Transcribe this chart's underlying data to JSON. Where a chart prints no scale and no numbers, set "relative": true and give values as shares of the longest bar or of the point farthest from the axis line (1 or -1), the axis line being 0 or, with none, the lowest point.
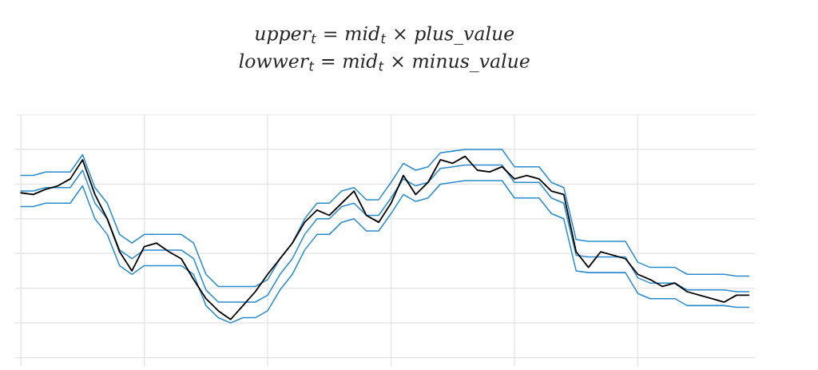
{
  "chart_data": {
    "type": "line",
    "title": "upper$_{t}$ = mid$_{t}$ × plus_value\nlowwer$_{t}$ = mid$_{t}$ × minus_value",
    "relative": true,
    "grid": true,
    "tick_labels": false,
    "categories": [
      null,
      null,
      null,
      null,
      null,
      null,
      null,
      null,
      null,
      null,
      null,
      null,
      null,
      null,
      null,
      null,
      null,
      null,
      null,
      null,
      null,
      null,
      null,
      null,
      null,
      null,
      null,
      null,
      null,
      null,
      null,
      null,
      null,
      null,
      null,
      null,
      null,
      null,
      null,
      null,
      null,
      null,
      null,
      null,
      null,
      null,
      null,
      null,
      null,
      null,
      null,
      null,
      null,
      null,
      null,
      null,
      null,
      null,
      null,
      null
    ],
    "series": [
      {
        "color": "#2b8ccd",
        "values": [
          0.85,
          0.85,
          0.87,
          0.87,
          0.87,
          0.97,
          0.78,
          0.69,
          0.51,
          0.46,
          0.51,
          0.51,
          0.51,
          0.51,
          0.46,
          0.28,
          0.21,
          0.21,
          0.21,
          0.21,
          0.25,
          0.37,
          0.46,
          0.6,
          0.69,
          0.69,
          0.76,
          0.78,
          0.71,
          0.71,
          0.81,
          0.92,
          0.88,
          0.9,
          0.98,
          0.99,
          1.0,
          1.0,
          1.0,
          1.0,
          0.9,
          0.9,
          0.9,
          0.81,
          0.78,
          0.48,
          0.47,
          0.47,
          0.47,
          0.47,
          0.35,
          0.32,
          0.32,
          0.32,
          0.28,
          0.28,
          0.28,
          0.28,
          0.27,
          0.27
        ]
      },
      {
        "color": "#2b8ccd",
        "values": [
          0.76,
          0.76,
          0.78,
          0.78,
          0.78,
          0.88,
          0.69,
          0.6,
          0.42,
          0.37,
          0.42,
          0.42,
          0.42,
          0.42,
          0.37,
          0.19,
          0.12,
          0.12,
          0.12,
          0.12,
          0.16,
          0.28,
          0.37,
          0.51,
          0.6,
          0.6,
          0.67,
          0.69,
          0.62,
          0.62,
          0.72,
          0.83,
          0.79,
          0.81,
          0.89,
          0.9,
          0.91,
          0.91,
          0.91,
          0.91,
          0.81,
          0.81,
          0.81,
          0.72,
          0.69,
          0.39,
          0.38,
          0.38,
          0.38,
          0.38,
          0.26,
          0.23,
          0.23,
          0.23,
          0.19,
          0.19,
          0.19,
          0.19,
          0.18,
          0.18
        ]
      },
      {
        "color": "#2b8ccd",
        "values": [
          0.67,
          0.67,
          0.69,
          0.69,
          0.69,
          0.79,
          0.6,
          0.51,
          0.33,
          0.28,
          0.33,
          0.33,
          0.33,
          0.33,
          0.28,
          0.1,
          0.03,
          0.0,
          0.03,
          0.03,
          0.07,
          0.19,
          0.28,
          0.42,
          0.51,
          0.51,
          0.58,
          0.6,
          0.53,
          0.53,
          0.63,
          0.74,
          0.7,
          0.72,
          0.8,
          0.81,
          0.82,
          0.82,
          0.82,
          0.82,
          0.72,
          0.72,
          0.72,
          0.63,
          0.6,
          0.3,
          0.29,
          0.29,
          0.29,
          0.29,
          0.17,
          0.14,
          0.14,
          0.14,
          0.1,
          0.1,
          0.1,
          0.1,
          0.09,
          0.09
        ]
      },
      {
        "color": "#000000",
        "values": [
          0.75,
          0.74,
          0.77,
          0.79,
          0.83,
          0.94,
          0.74,
          0.6,
          0.41,
          0.3,
          0.44,
          0.46,
          0.41,
          0.37,
          0.25,
          0.14,
          0.07,
          0.02,
          0.1,
          0.18,
          0.28,
          0.37,
          0.46,
          0.58,
          0.65,
          0.62,
          0.69,
          0.76,
          0.62,
          0.58,
          0.69,
          0.85,
          0.74,
          0.81,
          0.94,
          0.92,
          0.96,
          0.88,
          0.87,
          0.9,
          0.83,
          0.85,
          0.83,
          0.76,
          0.74,
          0.41,
          0.32,
          0.41,
          0.39,
          0.37,
          0.28,
          0.25,
          0.21,
          0.23,
          0.18,
          0.16,
          0.14,
          0.12,
          0.16,
          0.16
        ]
      }
    ]
  }
}
